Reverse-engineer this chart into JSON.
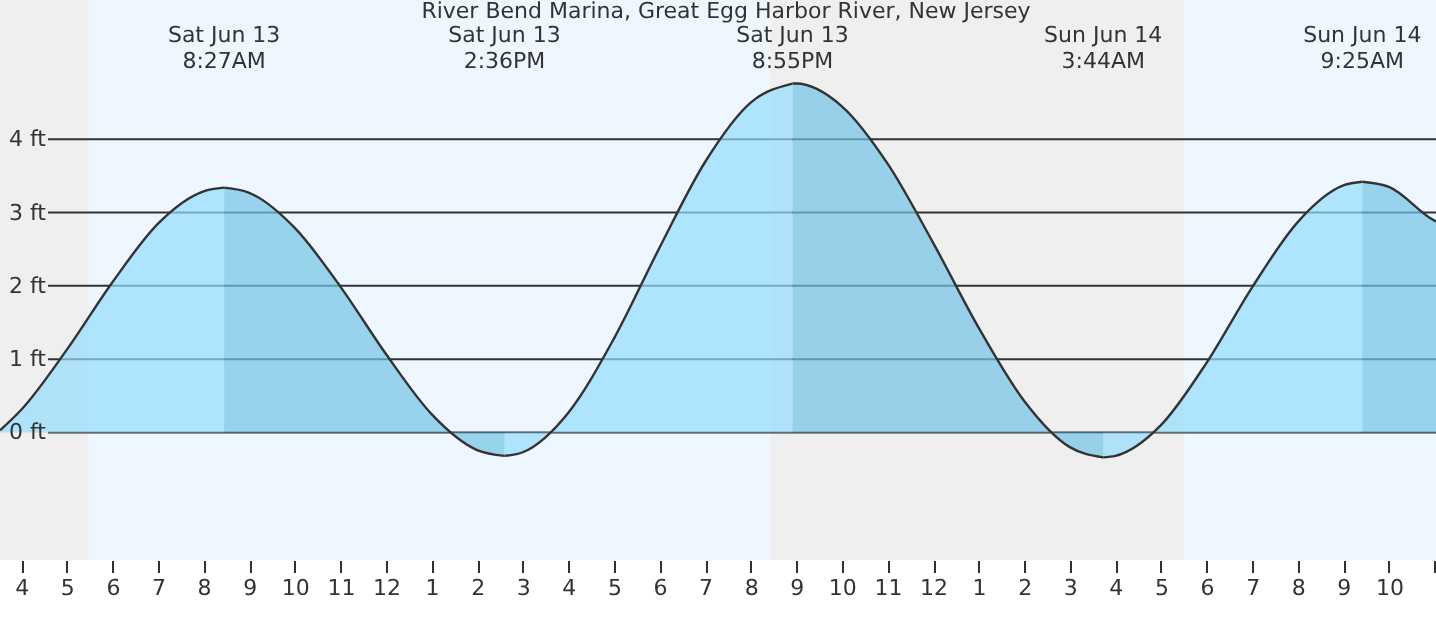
{
  "chart_data": {
    "type": "area",
    "title": "River Bend Marina, Great Egg Harbor River, New Jersey",
    "x": [
      "--06-13T03:32",
      "--06-13T04:00",
      "--06-13T05:00",
      "--06-13T06:00",
      "--06-13T07:00",
      "--06-13T08:00",
      "--06-13T08:27",
      "--06-13T09:00",
      "--06-13T10:00",
      "--06-13T11:00",
      "--06-13T12:00",
      "--06-13T13:00",
      "--06-13T14:00",
      "--06-13T14:36",
      "--06-13T15:00",
      "--06-13T16:00",
      "--06-13T17:00",
      "--06-13T18:00",
      "--06-13T19:00",
      "--06-13T20:00",
      "--06-13T20:55",
      "--06-13T21:00",
      "--06-13T22:00",
      "--06-13T23:00",
      "--06-14T00:00",
      "--06-14T01:00",
      "--06-14T02:00",
      "--06-14T03:00",
      "--06-14T03:44",
      "--06-14T04:00",
      "--06-14T05:00",
      "--06-14T06:00",
      "--06-14T07:00",
      "--06-14T08:00",
      "--06-14T09:00",
      "--06-14T09:25",
      "--06-14T10:00",
      "--06-14T11:00",
      "--06-14T11:02"
    ],
    "series": [
      {
        "color": "#94dcfe",
        "values": [
          0.03,
          0.31,
          1.13,
          2.05,
          2.85,
          3.29,
          3.34,
          null,
          null,
          null,
          null,
          null,
          null,
          -0.32,
          -0.27,
          0.27,
          1.28,
          2.52,
          3.69,
          4.5,
          4.76,
          null,
          null,
          null,
          null,
          null,
          null,
          null,
          -0.34,
          -0.32,
          0.1,
          0.95,
          1.98,
          2.87,
          3.37,
          3.42,
          null,
          null,
          null
        ]
      },
      {
        "color": "#73c3e7",
        "values": [
          null,
          null,
          null,
          null,
          null,
          null,
          3.34,
          3.27,
          2.79,
          1.99,
          1.07,
          0.25,
          -0.24,
          -0.32,
          null,
          null,
          null,
          null,
          null,
          null,
          4.76,
          4.76,
          4.45,
          3.67,
          2.59,
          1.43,
          0.43,
          -0.2,
          -0.34,
          null,
          null,
          null,
          null,
          null,
          null,
          3.42,
          3.35,
          2.89,
          2.88
        ]
      }
    ],
    "xlim": [
      "--06-13T03:32",
      "--06-14T11:02"
    ],
    "xticks": [
      {
        "value": "--06-13T04:00",
        "label": "4"
      },
      {
        "value": "--06-13T05:00",
        "label": "5"
      },
      {
        "value": "--06-13T06:00",
        "label": "6"
      },
      {
        "value": "--06-13T07:00",
        "label": "7"
      },
      {
        "value": "--06-13T08:00",
        "label": "8"
      },
      {
        "value": "--06-13T09:00",
        "label": "9"
      },
      {
        "value": "--06-13T10:00",
        "label": "10"
      },
      {
        "value": "--06-13T11:00",
        "label": "11"
      },
      {
        "value": "--06-13T12:00",
        "label": "12"
      },
      {
        "value": "--06-13T13:00",
        "label": "1"
      },
      {
        "value": "--06-13T14:00",
        "label": "2"
      },
      {
        "value": "--06-13T15:00",
        "label": "3"
      },
      {
        "value": "--06-13T16:00",
        "label": "4"
      },
      {
        "value": "--06-13T17:00",
        "label": "5"
      },
      {
        "value": "--06-13T18:00",
        "label": "6"
      },
      {
        "value": "--06-13T19:00",
        "label": "7"
      },
      {
        "value": "--06-13T20:00",
        "label": "8"
      },
      {
        "value": "--06-13T21:00",
        "label": "9"
      },
      {
        "value": "--06-13T22:00",
        "label": "10"
      },
      {
        "value": "--06-13T23:00",
        "label": "11"
      },
      {
        "value": "--06-14T00:00",
        "label": "12"
      },
      {
        "value": "--06-14T01:00",
        "label": "1"
      },
      {
        "value": "--06-14T02:00",
        "label": "2"
      },
      {
        "value": "--06-14T03:00",
        "label": "3"
      },
      {
        "value": "--06-14T04:00",
        "label": "4"
      },
      {
        "value": "--06-14T05:00",
        "label": "5"
      },
      {
        "value": "--06-14T06:00",
        "label": "6"
      },
      {
        "value": "--06-14T07:00",
        "label": "7"
      },
      {
        "value": "--06-14T08:00",
        "label": "8"
      },
      {
        "value": "--06-14T09:00",
        "label": "9"
      },
      {
        "value": "--06-14T10:00",
        "label": "10"
      },
      {
        "value": "--06-14T11:00",
        "label": null
      }
    ],
    "ylim": [
      -1.74,
      5.9
    ],
    "yticks": [
      {
        "value": 0,
        "label": "0 ft"
      },
      {
        "value": 1,
        "label": "1 ft"
      },
      {
        "value": 2,
        "label": "2 ft"
      },
      {
        "value": 3,
        "label": "3 ft"
      },
      {
        "value": 4,
        "label": "4 ft"
      }
    ],
    "grid": "y",
    "bands": [
      {
        "axis": "x",
        "from": "--06-13T03:32",
        "to": "--06-13T05:28",
        "color": "#efefef"
      },
      {
        "axis": "x",
        "from": "--06-13T20:26",
        "to": "--06-14T05:30",
        "color": "#efefef"
      }
    ],
    "annotations": [
      "Sat Jun 13\n8:27AM",
      "Sat Jun 13\n2:36PM",
      "Sat Jun 13\n8:55PM",
      "Sun Jun 14\n3:44AM",
      "Sun Jun 14\n9:25AM"
    ]
  }
}
